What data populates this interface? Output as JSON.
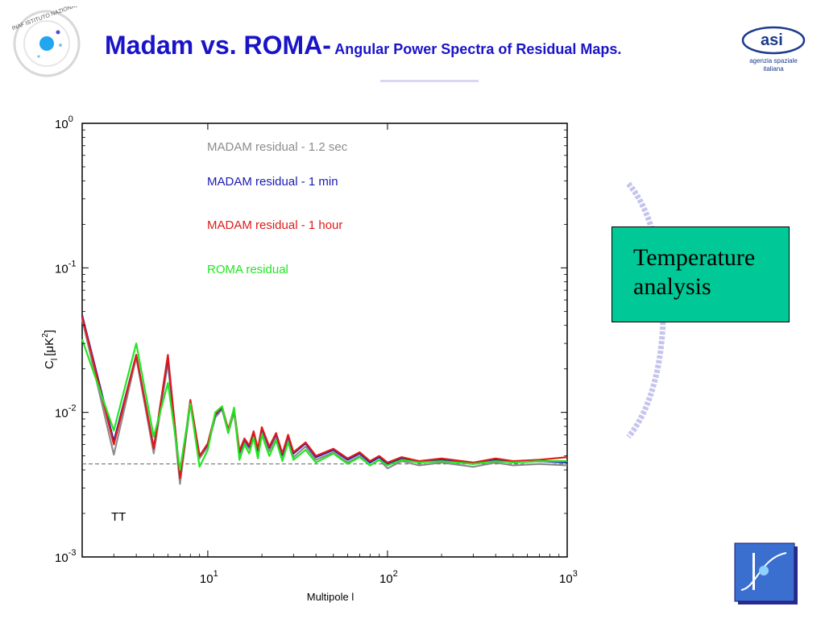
{
  "slide": {
    "title_main": "Madam vs. ROMA-",
    "title_sub": " Angular Power Spectra of Residual Maps.",
    "box_line1": "Temperature",
    "box_line2": "analysis",
    "title_color": "#1a14c8",
    "box_color": "#00c896"
  },
  "logos": {
    "inaf_text": "INAF ISTITUTO NAZIONALE DI ASTROFISICA",
    "asi_line1": "agenzia spaziale",
    "asi_line2": "italiana"
  },
  "chart_data": {
    "type": "line",
    "xlabel": "Multipole l",
    "ylabel": "C",
    "ylabel_sub": "l",
    "ylabel_unit": "[μK",
    "ylabel_unit_sup": "2",
    "ylabel_unit_end": "]",
    "xscale": "log",
    "yscale": "log",
    "xlim": [
      2,
      1000
    ],
    "ylim": [
      0.001,
      1
    ],
    "x_ticks": [
      {
        "base": "10",
        "exp": "1",
        "value": 10
      },
      {
        "base": "10",
        "exp": "2",
        "value": 100
      },
      {
        "base": "10",
        "exp": "3",
        "value": 1000
      }
    ],
    "y_ticks": [
      {
        "base": "10",
        "exp": "0",
        "value": 1
      },
      {
        "base": "10",
        "exp": "-1",
        "value": 0.1
      },
      {
        "base": "10",
        "exp": "-2",
        "value": 0.01
      },
      {
        "base": "10",
        "exp": "-3",
        "value": 0.001
      }
    ],
    "annotation": "TT",
    "reference_line": {
      "y": 0.0044,
      "style": "dashed"
    },
    "legend_placement": "inside top, as colored text",
    "series": [
      {
        "name": "MADAM residual - 1.2 sec",
        "color": "#8c8c8c",
        "x": [
          2,
          3,
          4,
          5,
          6,
          7,
          8,
          9,
          10,
          11,
          12,
          13,
          14,
          15,
          16,
          17,
          18,
          19,
          20,
          22,
          24,
          26,
          28,
          30,
          35,
          40,
          50,
          60,
          70,
          80,
          90,
          100,
          120,
          150,
          200,
          300,
          400,
          500,
          700,
          1000
        ],
        "y": [
          0.044,
          0.0051,
          0.024,
          0.0052,
          0.022,
          0.0032,
          0.0115,
          0.0048,
          0.0058,
          0.0092,
          0.0105,
          0.0072,
          0.01,
          0.005,
          0.0062,
          0.0056,
          0.007,
          0.0052,
          0.0075,
          0.0054,
          0.0068,
          0.0048,
          0.0066,
          0.0049,
          0.0058,
          0.0047,
          0.0053,
          0.0045,
          0.005,
          0.0043,
          0.0047,
          0.0041,
          0.0046,
          0.0043,
          0.0045,
          0.0042,
          0.0045,
          0.0043,
          0.0044,
          0.0043
        ]
      },
      {
        "name": "MADAM residual - 1 min",
        "color": "#1a1ab4",
        "x": [
          2,
          3,
          4,
          5,
          6,
          7,
          8,
          9,
          10,
          11,
          12,
          13,
          14,
          15,
          16,
          17,
          18,
          19,
          20,
          22,
          24,
          26,
          28,
          30,
          35,
          40,
          50,
          60,
          70,
          80,
          90,
          100,
          120,
          150,
          200,
          300,
          400,
          500,
          700,
          1000
        ],
        "y": [
          0.047,
          0.0063,
          0.025,
          0.0057,
          0.024,
          0.0036,
          0.012,
          0.005,
          0.006,
          0.0096,
          0.0108,
          0.0075,
          0.0105,
          0.0053,
          0.0065,
          0.0058,
          0.0073,
          0.0055,
          0.0078,
          0.0057,
          0.0071,
          0.0051,
          0.0069,
          0.0052,
          0.0061,
          0.0049,
          0.0055,
          0.0047,
          0.0052,
          0.0045,
          0.0049,
          0.0044,
          0.0048,
          0.0045,
          0.0047,
          0.0044,
          0.0047,
          0.0045,
          0.0046,
          0.0045
        ]
      },
      {
        "name": "MADAM residual - 1 hour",
        "color": "#e01a1a",
        "x": [
          2,
          3,
          4,
          5,
          6,
          7,
          8,
          9,
          10,
          11,
          12,
          13,
          14,
          15,
          16,
          17,
          18,
          19,
          20,
          22,
          24,
          26,
          28,
          30,
          35,
          40,
          50,
          60,
          70,
          80,
          90,
          100,
          120,
          150,
          200,
          300,
          400,
          500,
          700,
          1000
        ],
        "y": [
          0.046,
          0.006,
          0.025,
          0.0056,
          0.025,
          0.0035,
          0.0122,
          0.005,
          0.0061,
          0.0097,
          0.011,
          0.0076,
          0.0106,
          0.0054,
          0.0066,
          0.0059,
          0.0074,
          0.0056,
          0.0079,
          0.0058,
          0.0072,
          0.0052,
          0.007,
          0.0053,
          0.0062,
          0.005,
          0.0056,
          0.0048,
          0.0053,
          0.0046,
          0.005,
          0.0045,
          0.0049,
          0.0046,
          0.0048,
          0.0045,
          0.0048,
          0.0046,
          0.0047,
          0.0049
        ]
      },
      {
        "name": "ROMA residual",
        "color": "#22e622",
        "x": [
          2,
          3,
          4,
          5,
          6,
          7,
          8,
          9,
          10,
          11,
          12,
          13,
          14,
          15,
          16,
          17,
          18,
          19,
          20,
          22,
          24,
          26,
          28,
          30,
          35,
          40,
          50,
          60,
          70,
          80,
          90,
          100,
          120,
          150,
          200,
          300,
          400,
          500,
          700,
          1000
        ],
        "y": [
          0.032,
          0.0075,
          0.03,
          0.0068,
          0.016,
          0.004,
          0.0115,
          0.0042,
          0.0055,
          0.01,
          0.011,
          0.0072,
          0.0108,
          0.0047,
          0.006,
          0.0052,
          0.0067,
          0.0048,
          0.007,
          0.005,
          0.0064,
          0.0046,
          0.0062,
          0.0047,
          0.0055,
          0.0045,
          0.0052,
          0.0044,
          0.0049,
          0.0043,
          0.0047,
          0.0043,
          0.0047,
          0.0045,
          0.0046,
          0.0044,
          0.0046,
          0.0045,
          0.0046,
          0.0046
        ]
      }
    ]
  }
}
